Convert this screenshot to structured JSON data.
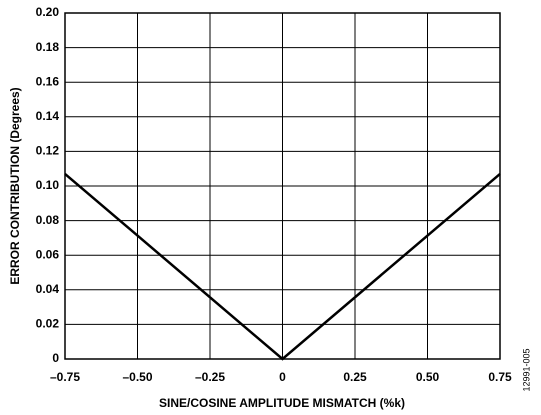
{
  "chart_data": {
    "type": "line",
    "xlabel": "SINE/COSINE AMPLITUDE MISMATCH (%k)",
    "ylabel": "ERROR CONTRIBUTION (Degrees)",
    "figure_id": "12991-005",
    "x": [
      -0.75,
      0,
      0.75
    ],
    "values": [
      0.107,
      0,
      0.107
    ],
    "color": "#000000",
    "xlim": [
      -0.75,
      0.75
    ],
    "ylim": [
      0,
      0.2
    ],
    "xticks": [
      {
        "value": -0.75,
        "label": "–0.75"
      },
      {
        "value": -0.5,
        "label": "–0.50"
      },
      {
        "value": -0.25,
        "label": "–0.25"
      },
      0,
      0.25,
      {
        "value": 0.5,
        "label": "0.50"
      },
      0.75
    ],
    "yticks": [
      0,
      {
        "value": 0.02,
        "label": "0.02"
      },
      {
        "value": 0.04,
        "label": "0.04"
      },
      {
        "value": 0.06,
        "label": "0.06"
      },
      {
        "value": 0.08,
        "label": "0.08"
      },
      {
        "value": 0.1,
        "label": "0.10"
      },
      {
        "value": 0.12,
        "label": "0.12"
      },
      {
        "value": 0.14,
        "label": "0.14"
      },
      {
        "value": 0.16,
        "label": "0.16"
      },
      {
        "value": 0.18,
        "label": "0.18"
      },
      {
        "value": 0.2,
        "label": "0.20"
      }
    ],
    "grid": true
  }
}
